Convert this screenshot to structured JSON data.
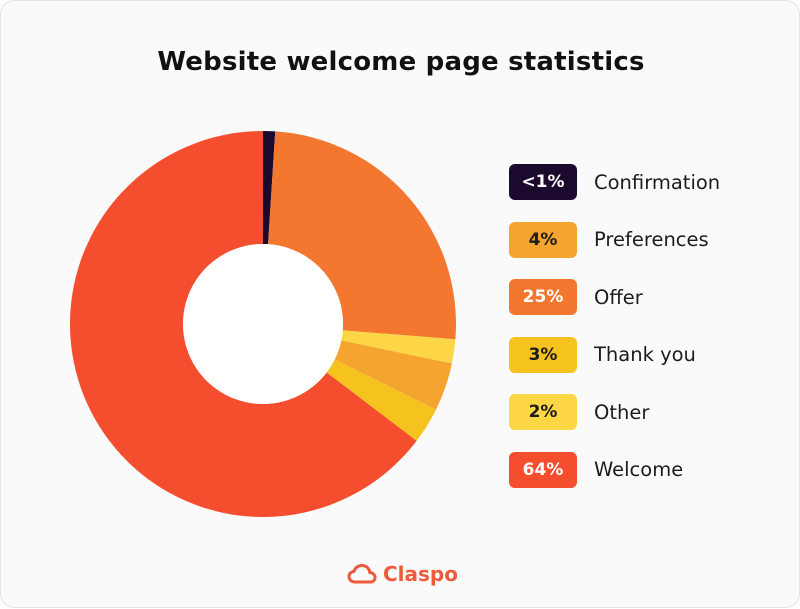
{
  "chart_data": {
    "type": "pie",
    "title": "Website welcome page statistics",
    "categories": [
      "Confirmation",
      "Offer",
      "Other",
      "Preferences",
      "Thank you",
      "Welcome"
    ],
    "values": [
      1,
      25,
      2,
      4,
      3,
      64
    ],
    "colors": [
      "#1c0a2e",
      "#f4772f",
      "#fcd645",
      "#f5a52f",
      "#f6c21e",
      "#f44e2e"
    ],
    "donut": true,
    "legend_position": "right",
    "legend": [
      {
        "badge": "<1%",
        "label": "Confirmation",
        "color": "#1c0a2e",
        "text_color": "#ffffff"
      },
      {
        "badge": "4%",
        "label": "Preferences",
        "color": "#f5a52f",
        "text_color": "#1c1c1c"
      },
      {
        "badge": "25%",
        "label": "Offer",
        "color": "#f4772f",
        "text_color": "#ffffff"
      },
      {
        "badge": "3%",
        "label": "Thank you",
        "color": "#f6c21e",
        "text_color": "#1c1c1c"
      },
      {
        "badge": "2%",
        "label": "Other",
        "color": "#fcd645",
        "text_color": "#1c1c1c"
      },
      {
        "badge": "64%",
        "label": "Welcome",
        "color": "#f44e2e",
        "text_color": "#ffffff"
      }
    ]
  },
  "brand": {
    "name": "Claspo",
    "icon": "cloud-icon",
    "color": "#ee5a3c"
  }
}
